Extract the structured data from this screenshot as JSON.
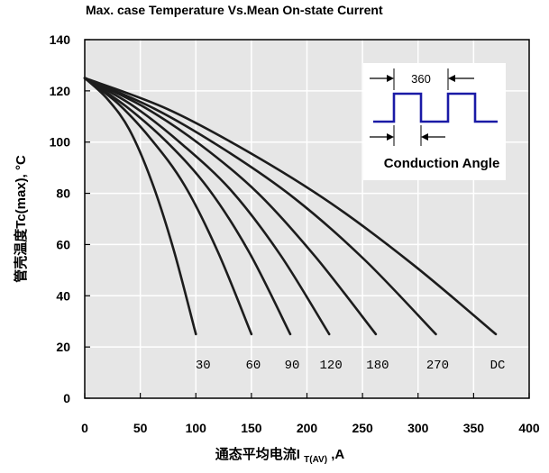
{
  "chart_data": {
    "type": "line",
    "title": "Max. case Temperature Vs.Mean On-state Current",
    "xlabel_prefix": "通态平均电流I",
    "xlabel_sub": "T(AV)",
    "xlabel_suffix": ",A",
    "ylabel": "管壳温度Tc(max), °C",
    "xlim": [
      0,
      400
    ],
    "ylim": [
      0,
      140
    ],
    "x_ticks": [
      "0",
      "50",
      "100",
      "150",
      "200",
      "250",
      "300",
      "350",
      "400"
    ],
    "y_ticks": [
      "0",
      "20",
      "40",
      "60",
      "80",
      "100",
      "120",
      "140"
    ],
    "grid": true,
    "series": [
      {
        "name": "30",
        "x": [
          0,
          20,
          40,
          60,
          80,
          100
        ],
        "y": [
          125,
          117,
          105,
          85,
          58,
          25
        ]
      },
      {
        "name": "60",
        "x": [
          0,
          30,
          60,
          90,
          120,
          150
        ],
        "y": [
          125,
          115,
          101,
          83,
          57,
          25
        ]
      },
      {
        "name": "90",
        "x": [
          0,
          37,
          74,
          111,
          148,
          185
        ],
        "y": [
          125,
          114,
          100,
          82,
          57,
          25
        ]
      },
      {
        "name": "120",
        "x": [
          0,
          44,
          88,
          132,
          176,
          220
        ],
        "y": [
          125,
          114,
          99,
          81,
          56,
          25
        ]
      },
      {
        "name": "180",
        "x": [
          0,
          52,
          104,
          156,
          208,
          262
        ],
        "y": [
          125,
          114,
          99,
          80,
          55,
          25
        ]
      },
      {
        "name": "270",
        "x": [
          0,
          63,
          126,
          189,
          252,
          316
        ],
        "y": [
          125,
          113,
          97,
          78,
          54,
          25
        ]
      },
      {
        "name": "DC",
        "x": [
          0,
          74,
          148,
          222,
          296,
          370
        ],
        "y": [
          125,
          113,
          96,
          76,
          52,
          25
        ]
      }
    ],
    "inset": {
      "period_label": "360",
      "caption": "Conduction Angle"
    }
  }
}
